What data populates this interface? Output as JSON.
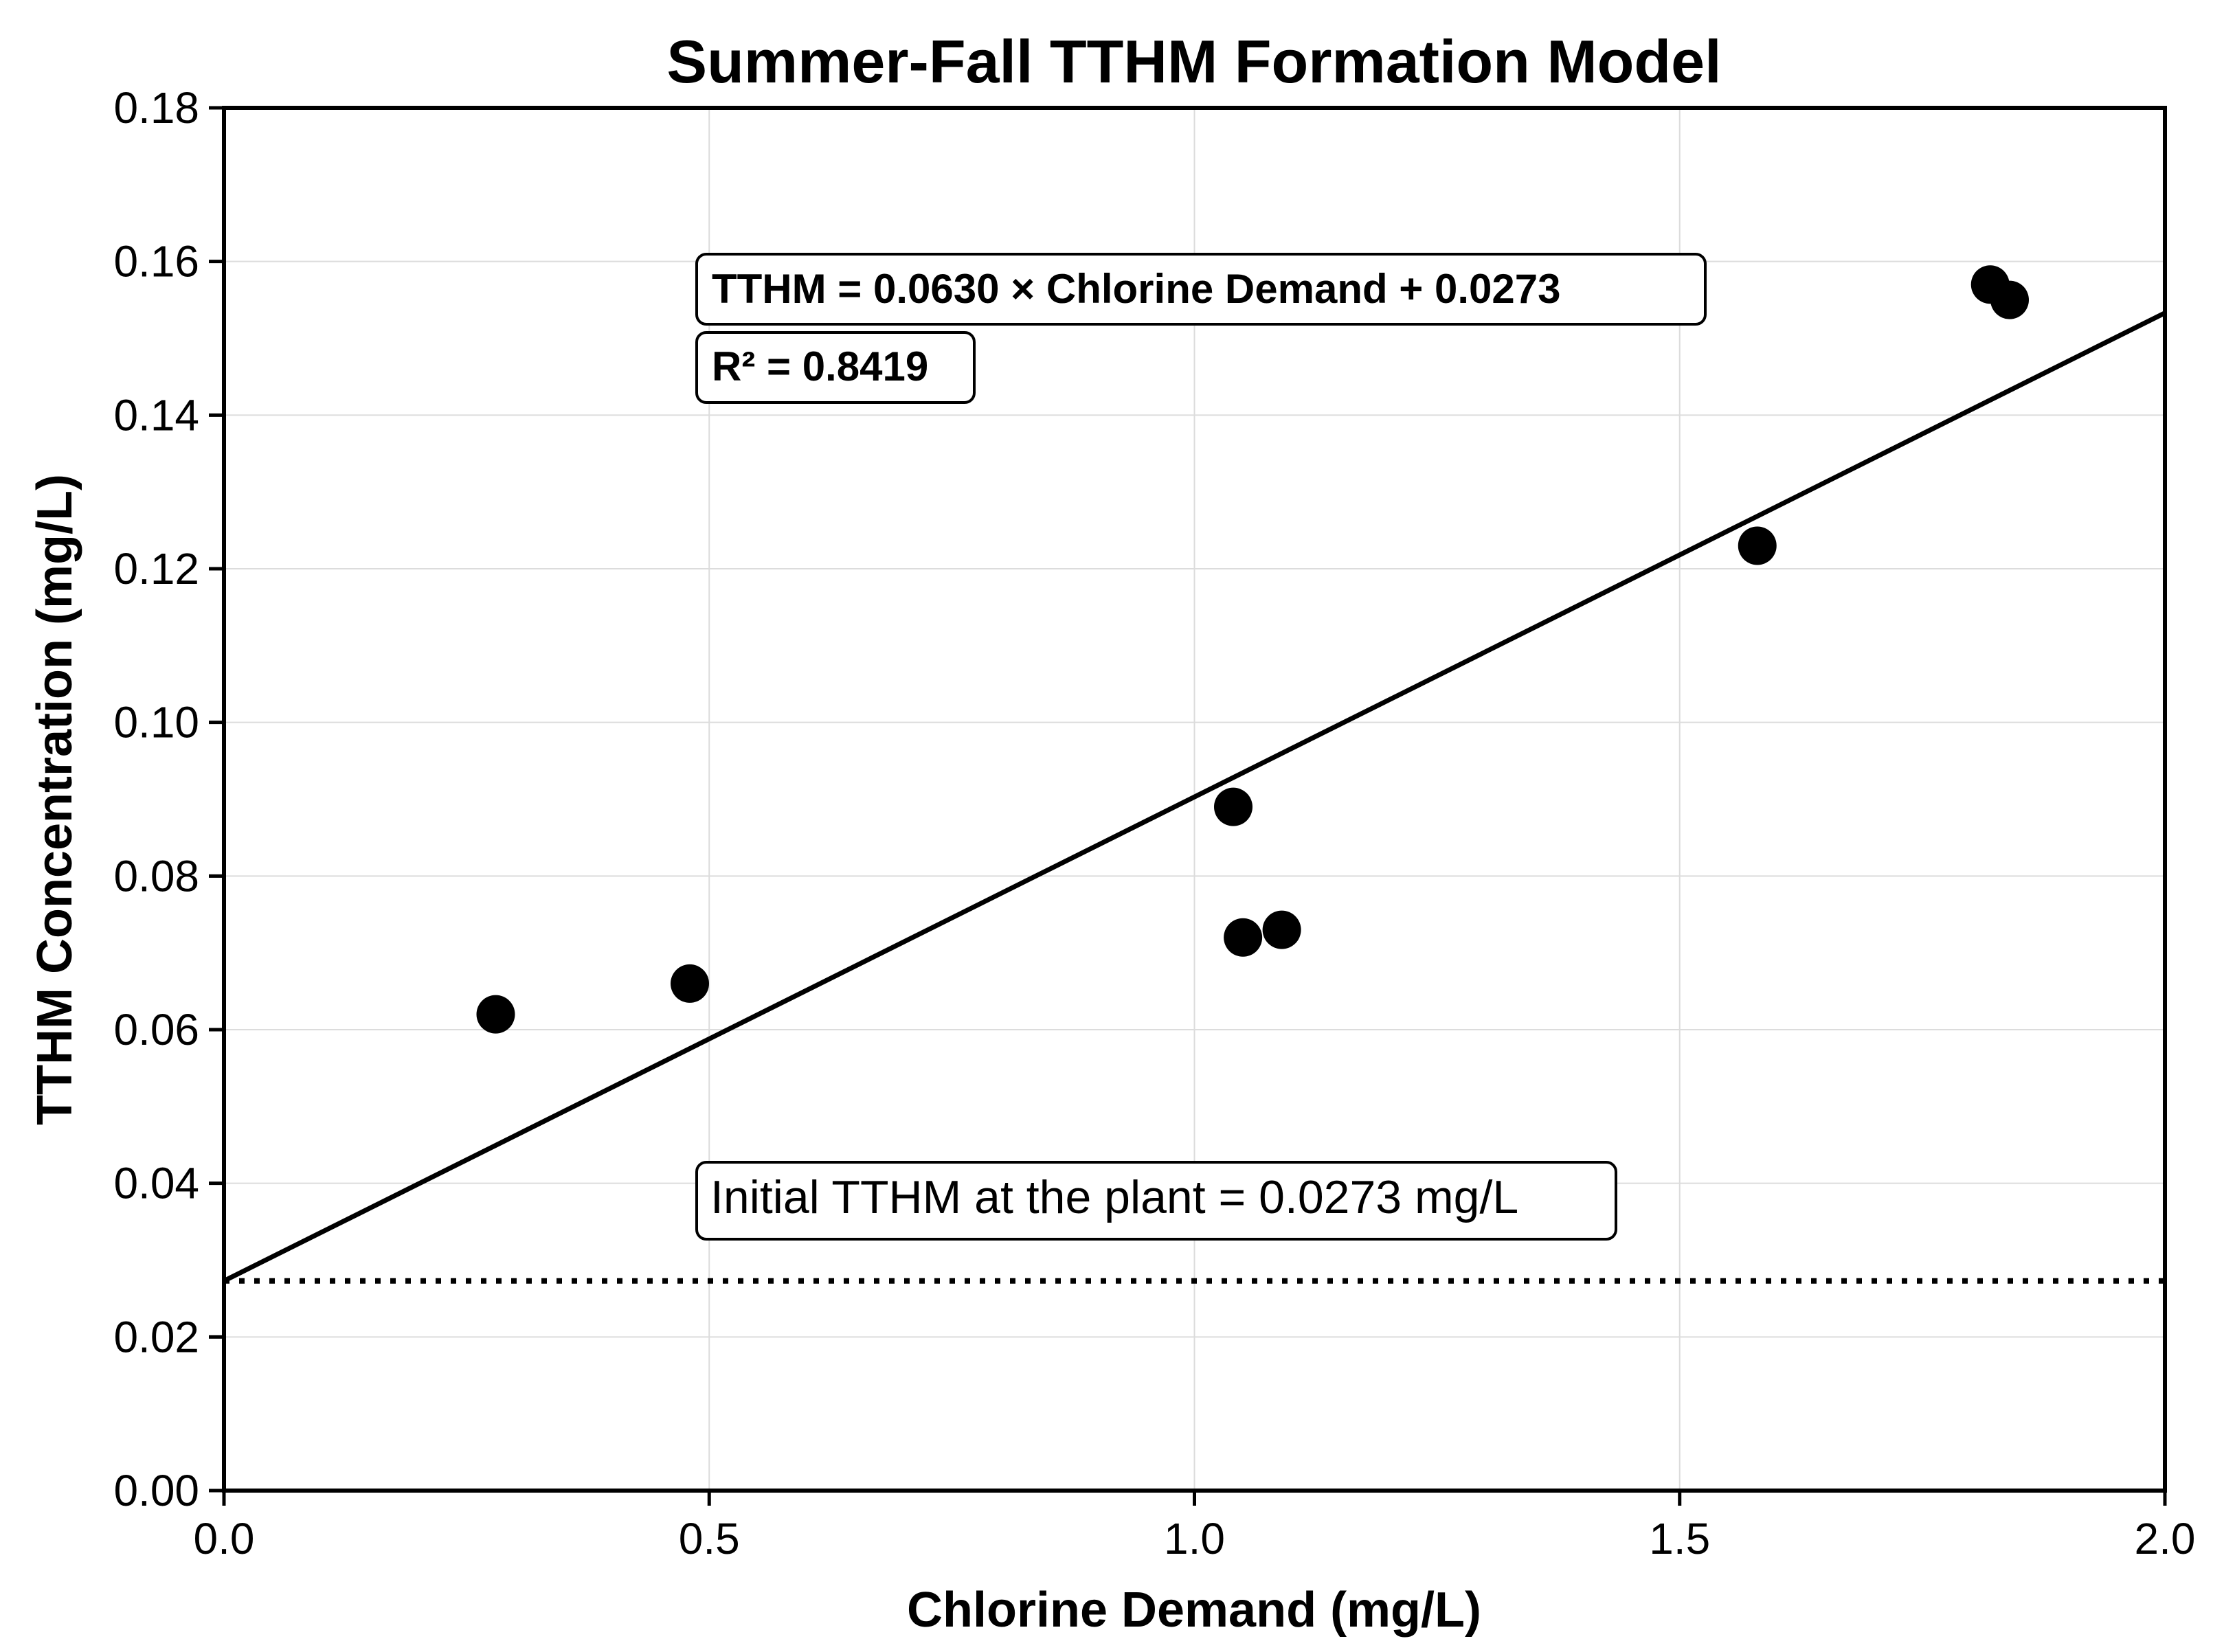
{
  "chart_data": {
    "type": "scatter",
    "title": "Summer-Fall TTHM Formation Model",
    "xlabel": "Chlorine Demand (mg/L)",
    "ylabel": "TTHM Concentration (mg/L)",
    "xlim": [
      0.0,
      2.0
    ],
    "ylim": [
      0.0,
      0.18
    ],
    "x_ticks": [
      0.0,
      0.5,
      1.0,
      1.5,
      2.0
    ],
    "x_tick_labels": [
      "0.0",
      "0.5",
      "1.0",
      "1.5",
      "2.0"
    ],
    "y_ticks": [
      0.0,
      0.02,
      0.04,
      0.06,
      0.08,
      0.1,
      0.12,
      0.14,
      0.16,
      0.18
    ],
    "y_tick_labels": [
      "0.00",
      "0.02",
      "0.04",
      "0.06",
      "0.08",
      "0.10",
      "0.12",
      "0.14",
      "0.16",
      "0.18"
    ],
    "grid": true,
    "points": [
      {
        "x": 0.28,
        "y": 0.062
      },
      {
        "x": 0.48,
        "y": 0.066
      },
      {
        "x": 1.04,
        "y": 0.089
      },
      {
        "x": 1.05,
        "y": 0.072
      },
      {
        "x": 1.09,
        "y": 0.073
      },
      {
        "x": 1.58,
        "y": 0.123
      },
      {
        "x": 1.82,
        "y": 0.157
      },
      {
        "x": 1.84,
        "y": 0.155
      }
    ],
    "marker_color": "#000000",
    "fit_line": {
      "slope": 0.063,
      "intercept": 0.0273,
      "color": "#000000"
    },
    "baseline": {
      "y": 0.0273,
      "style": "dotted",
      "color": "#000000"
    },
    "annotations": {
      "equation": "TTHM = 0.0630 × Chlorine Demand + 0.0273",
      "r_squared": "R² = 0.8419",
      "initial": "Initial TTHM at the plant = 0.0273 mg/L"
    }
  }
}
